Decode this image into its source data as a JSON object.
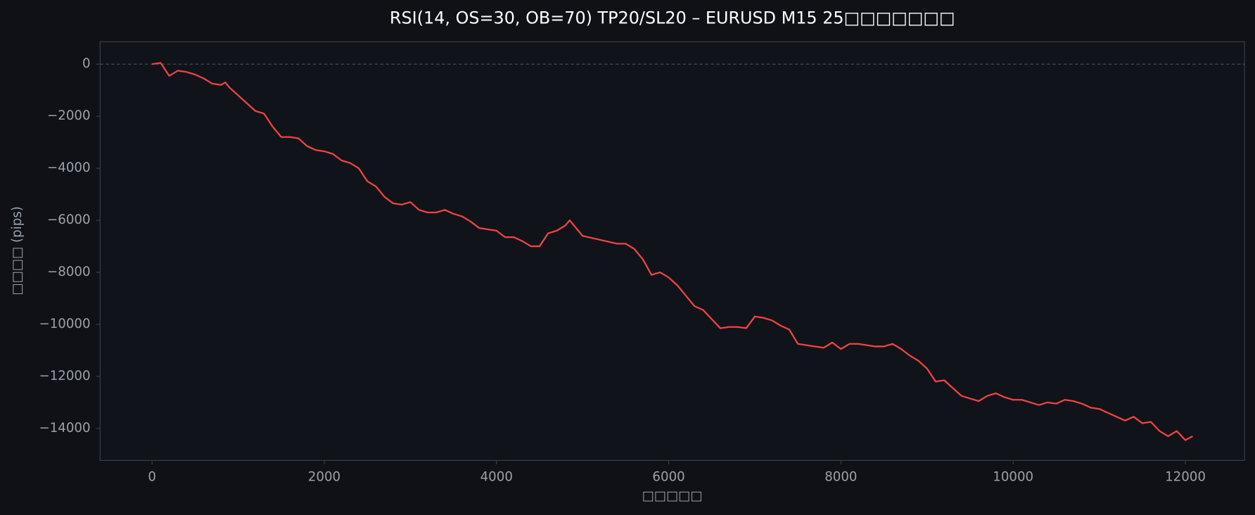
{
  "chart_data": {
    "type": "line",
    "title": "RSI(14, OS=30, OB=70) TP20/SL20 – EURUSD M15 25□□□□□□□",
    "x_label": "□□□□□",
    "y_label": "□□□□ (pips)",
    "color": "#ef4444",
    "hline": 0,
    "x": [
      0,
      100,
      200,
      300,
      400,
      500,
      600,
      700,
      800,
      850,
      900,
      1000,
      1100,
      1200,
      1300,
      1400,
      1500,
      1600,
      1700,
      1800,
      1900,
      2000,
      2100,
      2200,
      2300,
      2400,
      2500,
      2600,
      2700,
      2800,
      2900,
      3000,
      3100,
      3200,
      3300,
      3400,
      3500,
      3600,
      3700,
      3800,
      3900,
      4000,
      4100,
      4200,
      4300,
      4400,
      4500,
      4600,
      4700,
      4800,
      4850,
      4900,
      5000,
      5200,
      5400,
      5500,
      5600,
      5700,
      5800,
      5900,
      6000,
      6100,
      6200,
      6300,
      6400,
      6500,
      6600,
      6700,
      6800,
      6900,
      7000,
      7100,
      7200,
      7300,
      7400,
      7500,
      7600,
      7700,
      7800,
      7900,
      8000,
      8100,
      8200,
      8300,
      8400,
      8500,
      8600,
      8700,
      8800,
      8900,
      9000,
      9100,
      9200,
      9300,
      9400,
      9500,
      9600,
      9700,
      9800,
      9900,
      10000,
      10100,
      10200,
      10300,
      10400,
      10500,
      10600,
      10700,
      10800,
      10900,
      11000,
      11100,
      11200,
      11300,
      11400,
      11500,
      11600,
      11700,
      11800,
      11900,
      12000,
      12084
    ],
    "values": [
      0,
      50,
      -450,
      -250,
      -300,
      -400,
      -550,
      -750,
      -800,
      -700,
      -900,
      -1200,
      -1500,
      -1800,
      -1900,
      -2400,
      -2800,
      -2800,
      -2850,
      -3150,
      -3300,
      -3350,
      -3450,
      -3700,
      -3800,
      -4000,
      -4500,
      -4700,
      -5100,
      -5350,
      -5400,
      -5300,
      -5600,
      -5700,
      -5700,
      -5600,
      -5750,
      -5850,
      -6050,
      -6300,
      -6350,
      -6400,
      -6650,
      -6650,
      -6800,
      -7000,
      -7000,
      -6500,
      -6400,
      -6200,
      -6000,
      -6200,
      -6600,
      -6750,
      -6900,
      -6900,
      -7100,
      -7500,
      -8100,
      -8000,
      -8200,
      -8500,
      -8900,
      -9300,
      -9450,
      -9800,
      -10150,
      -10100,
      -10100,
      -10150,
      -9700,
      -9750,
      -9850,
      -10050,
      -10200,
      -10750,
      -10800,
      -10850,
      -10900,
      -10700,
      -10950,
      -10750,
      -10750,
      -10800,
      -10850,
      -10850,
      -10750,
      -10950,
      -11200,
      -11400,
      -11700,
      -12200,
      -12150,
      -12450,
      -12750,
      -12850,
      -12950,
      -12750,
      -12650,
      -12800,
      -12900,
      -12900,
      -13000,
      -13100,
      -13000,
      -13050,
      -12900,
      -12950,
      -13050,
      -13200,
      -13250,
      -13400,
      -13550,
      -13700,
      -13550,
      -13800,
      -13750,
      -14100,
      -14300,
      -14100,
      -14450,
      -14300
    ],
    "xlim": [
      -604,
      12688
    ],
    "ylim": [
      -15230,
      860
    ],
    "xticks": [
      0,
      2000,
      4000,
      6000,
      8000,
      10000,
      12000
    ],
    "yticks": [
      {
        "value": -14000,
        "label": "−14000"
      },
      {
        "value": -12000,
        "label": "−12000"
      },
      {
        "value": -10000,
        "label": "−10000"
      },
      {
        "value": -8000,
        "label": "−8000"
      },
      {
        "value": -6000,
        "label": "−6000"
      },
      {
        "value": -4000,
        "label": "−4000"
      },
      {
        "value": -2000,
        "label": "−2000"
      },
      0
    ]
  }
}
